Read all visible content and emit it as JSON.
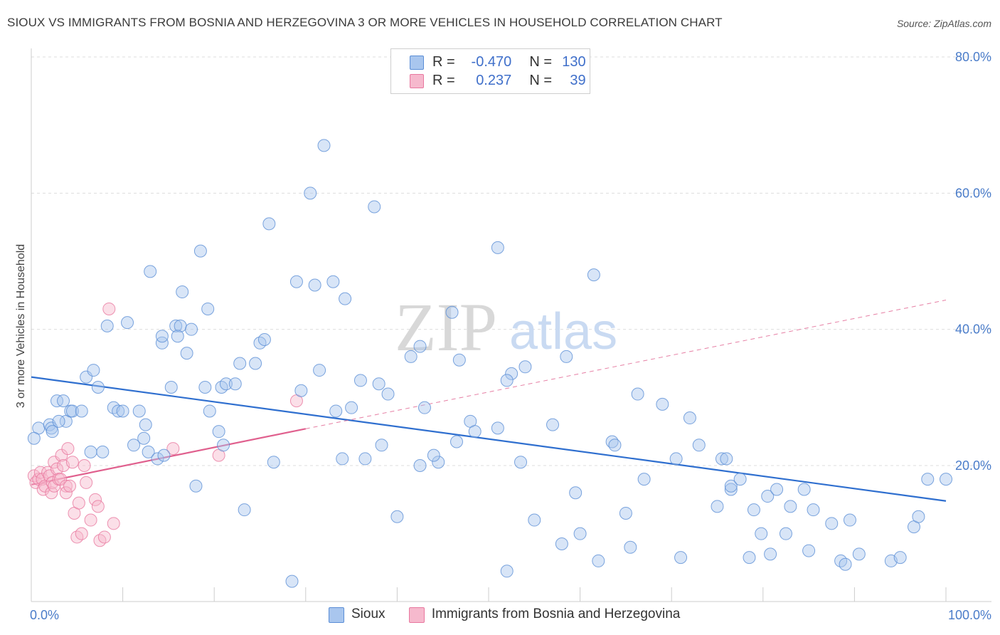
{
  "title": "SIOUX VS IMMIGRANTS FROM BOSNIA AND HERZEGOVINA 3 OR MORE VEHICLES IN HOUSEHOLD CORRELATION CHART",
  "source": "Source: ZipAtlas.com",
  "watermark": {
    "zip": "ZIP",
    "atlas": "atlas"
  },
  "legend": {
    "rows": [
      {
        "r_label": "R =",
        "r_value": "-0.470",
        "n_label": "N =",
        "n_value": "130"
      },
      {
        "r_label": "R =",
        "r_value": "0.237",
        "n_label": "N =",
        "n_value": "39"
      }
    ]
  },
  "bottom_legend": {
    "sioux": "Sioux",
    "bosnia": "Immigrants from Bosnia and Herzegovina"
  },
  "colors": {
    "blue": "#5b8ed6",
    "blue_fill": "#a9c6ee",
    "blue_line": "#2f6fcf",
    "pink": "#e8789f",
    "pink_fill": "#f6b9cd",
    "pink_line": "#e0608e"
  },
  "chart_data": {
    "type": "scatter",
    "title": "SIOUX VS IMMIGRANTS FROM BOSNIA AND HERZEGOVINA 3 OR MORE VEHICLES IN HOUSEHOLD CORRELATION CHART",
    "xlabel": "",
    "ylabel": "3 or more Vehicles in Household",
    "xlim": [
      0,
      100
    ],
    "ylim": [
      0,
      80
    ],
    "x_tick_labels": [
      "0.0%",
      "100.0%"
    ],
    "y_tick_labels": [
      "20.0%",
      "40.0%",
      "60.0%",
      "80.0%"
    ],
    "y_ticks": [
      20,
      40,
      60,
      80
    ],
    "grid": true,
    "legend_position": "top-center",
    "series": [
      {
        "name": "Sioux",
        "color": "#5b8ed6",
        "trend": {
          "x": [
            0,
            100
          ],
          "y": [
            33.0,
            14.8
          ]
        },
        "points": [
          [
            0.8,
            25.5
          ],
          [
            2.0,
            26.0
          ],
          [
            2.2,
            25.5
          ],
          [
            2.3,
            25.0
          ],
          [
            2.8,
            29.5
          ],
          [
            3.5,
            29.5
          ],
          [
            3.8,
            26.5
          ],
          [
            4.3,
            28.0
          ],
          [
            4.5,
            28.0
          ],
          [
            5.5,
            28.0
          ],
          [
            6.0,
            33.0
          ],
          [
            6.8,
            34.0
          ],
          [
            7.3,
            31.5
          ],
          [
            6.5,
            22.0
          ],
          [
            7.8,
            22.0
          ],
          [
            8.3,
            40.5
          ],
          [
            9.0,
            28.5
          ],
          [
            9.5,
            28.0
          ],
          [
            10.0,
            28.0
          ],
          [
            10.5,
            41.0
          ],
          [
            11.2,
            23.0
          ],
          [
            11.8,
            28.0
          ],
          [
            12.3,
            24.0
          ],
          [
            12.5,
            26.0
          ],
          [
            12.8,
            22.0
          ],
          [
            13.0,
            48.5
          ],
          [
            13.8,
            21.0
          ],
          [
            14.3,
            38.0
          ],
          [
            14.5,
            21.5
          ],
          [
            15.3,
            31.5
          ],
          [
            15.8,
            40.5
          ],
          [
            16.3,
            40.5
          ],
          [
            16.5,
            45.5
          ],
          [
            17.0,
            36.5
          ],
          [
            17.5,
            40.0
          ],
          [
            18.5,
            51.5
          ],
          [
            19.0,
            31.5
          ],
          [
            19.3,
            43.0
          ],
          [
            19.5,
            28.0
          ],
          [
            20.5,
            25.0
          ],
          [
            20.8,
            31.5
          ],
          [
            21.0,
            23.0
          ],
          [
            21.3,
            32.0
          ],
          [
            22.3,
            32.0
          ],
          [
            22.8,
            35.0
          ],
          [
            23.3,
            13.5
          ],
          [
            24.5,
            35.0
          ],
          [
            25.0,
            38.0
          ],
          [
            26.0,
            55.5
          ],
          [
            26.5,
            20.5
          ],
          [
            29.0,
            47.0
          ],
          [
            29.5,
            31.0
          ],
          [
            30.5,
            60.0
          ],
          [
            31.0,
            46.5
          ],
          [
            31.5,
            34.0
          ],
          [
            32.0,
            67.0
          ],
          [
            33.0,
            47.0
          ],
          [
            33.3,
            28.0
          ],
          [
            34.0,
            21.0
          ],
          [
            34.3,
            44.5
          ],
          [
            35.0,
            28.5
          ],
          [
            36.0,
            32.5
          ],
          [
            37.5,
            58.0
          ],
          [
            38.0,
            32.0
          ],
          [
            38.3,
            23.0
          ],
          [
            39.0,
            30.5
          ],
          [
            40.0,
            12.5
          ],
          [
            41.5,
            36.0
          ],
          [
            42.5,
            37.5
          ],
          [
            42.5,
            20.0
          ],
          [
            43.0,
            28.5
          ],
          [
            44.5,
            20.5
          ],
          [
            46.0,
            42.5
          ],
          [
            46.5,
            23.5
          ],
          [
            46.8,
            35.5
          ],
          [
            48.0,
            26.5
          ],
          [
            48.5,
            25.0
          ],
          [
            51.0,
            52.0
          ],
          [
            51.0,
            25.5
          ],
          [
            52.0,
            4.5
          ],
          [
            52.5,
            33.5
          ],
          [
            53.5,
            20.5
          ],
          [
            54.0,
            34.5
          ],
          [
            55.0,
            12.0
          ],
          [
            57.0,
            26.0
          ],
          [
            58.0,
            8.5
          ],
          [
            58.5,
            36.0
          ],
          [
            59.5,
            16.0
          ],
          [
            60.0,
            10.0
          ],
          [
            61.5,
            48.0
          ],
          [
            62.0,
            6.0
          ],
          [
            63.5,
            23.5
          ],
          [
            63.8,
            23.0
          ],
          [
            65.0,
            13.0
          ],
          [
            65.5,
            8.0
          ],
          [
            66.3,
            30.5
          ],
          [
            67.0,
            18.0
          ],
          [
            69.0,
            29.0
          ],
          [
            70.5,
            21.0
          ],
          [
            71.0,
            6.5
          ],
          [
            72.0,
            27.0
          ],
          [
            73.0,
            23.0
          ],
          [
            75.0,
            14.0
          ],
          [
            75.5,
            21.0
          ],
          [
            76.0,
            21.0
          ],
          [
            76.5,
            16.5
          ],
          [
            76.5,
            17.0
          ],
          [
            77.5,
            18.0
          ],
          [
            78.5,
            6.5
          ],
          [
            79.0,
            13.5
          ],
          [
            79.8,
            10.0
          ],
          [
            80.5,
            15.5
          ],
          [
            80.8,
            7.0
          ],
          [
            81.5,
            16.5
          ],
          [
            82.5,
            10.0
          ],
          [
            83.0,
            14.0
          ],
          [
            84.5,
            16.5
          ],
          [
            85.0,
            7.5
          ],
          [
            85.5,
            13.5
          ],
          [
            87.5,
            11.5
          ],
          [
            88.5,
            6.0
          ],
          [
            89.0,
            5.5
          ],
          [
            89.5,
            12.0
          ],
          [
            90.5,
            7.0
          ],
          [
            94.0,
            6.0
          ],
          [
            95.0,
            6.5
          ],
          [
            96.5,
            11.0
          ],
          [
            97.0,
            12.5
          ],
          [
            98.0,
            18.0
          ],
          [
            100.0,
            18.0
          ],
          [
            0.3,
            24.0
          ],
          [
            3.0,
            26.5
          ],
          [
            14.3,
            39.0
          ],
          [
            16.0,
            39.0
          ],
          [
            18.0,
            17.0
          ],
          [
            25.5,
            38.5
          ],
          [
            28.5,
            3.0
          ],
          [
            36.5,
            21.0
          ],
          [
            44.0,
            21.5
          ],
          [
            52.0,
            32.5
          ]
        ]
      },
      {
        "name": "Immigrants from Bosnia and Herzegovina",
        "color": "#e8789f",
        "trend": {
          "x": [
            0,
            30
          ],
          "y": [
            17.2,
            25.4
          ],
          "dashed_extension": {
            "x": [
              30,
              100
            ],
            "y": [
              25.4,
              44.3
            ]
          }
        },
        "points": [
          [
            0.3,
            18.5
          ],
          [
            0.5,
            17.5
          ],
          [
            0.8,
            18.0
          ],
          [
            1.0,
            19.0
          ],
          [
            1.2,
            18.0
          ],
          [
            1.3,
            16.5
          ],
          [
            1.5,
            17.0
          ],
          [
            1.8,
            19.0
          ],
          [
            2.0,
            18.5
          ],
          [
            2.2,
            16.0
          ],
          [
            2.3,
            17.5
          ],
          [
            2.5,
            20.5
          ],
          [
            2.5,
            17.0
          ],
          [
            2.8,
            19.5
          ],
          [
            3.0,
            18.0
          ],
          [
            3.2,
            18.0
          ],
          [
            3.3,
            21.5
          ],
          [
            3.5,
            20.0
          ],
          [
            3.8,
            17.0
          ],
          [
            3.8,
            16.0
          ],
          [
            4.0,
            22.5
          ],
          [
            4.2,
            17.0
          ],
          [
            4.5,
            20.5
          ],
          [
            4.7,
            13.0
          ],
          [
            5.0,
            9.5
          ],
          [
            5.2,
            14.5
          ],
          [
            5.5,
            10.0
          ],
          [
            5.8,
            20.0
          ],
          [
            6.0,
            17.5
          ],
          [
            6.5,
            12.0
          ],
          [
            7.0,
            15.0
          ],
          [
            7.3,
            14.0
          ],
          [
            7.5,
            9.0
          ],
          [
            8.0,
            9.5
          ],
          [
            8.5,
            43.0
          ],
          [
            9.0,
            11.5
          ],
          [
            15.5,
            22.5
          ],
          [
            20.5,
            21.5
          ],
          [
            29.0,
            29.5
          ]
        ]
      }
    ]
  }
}
